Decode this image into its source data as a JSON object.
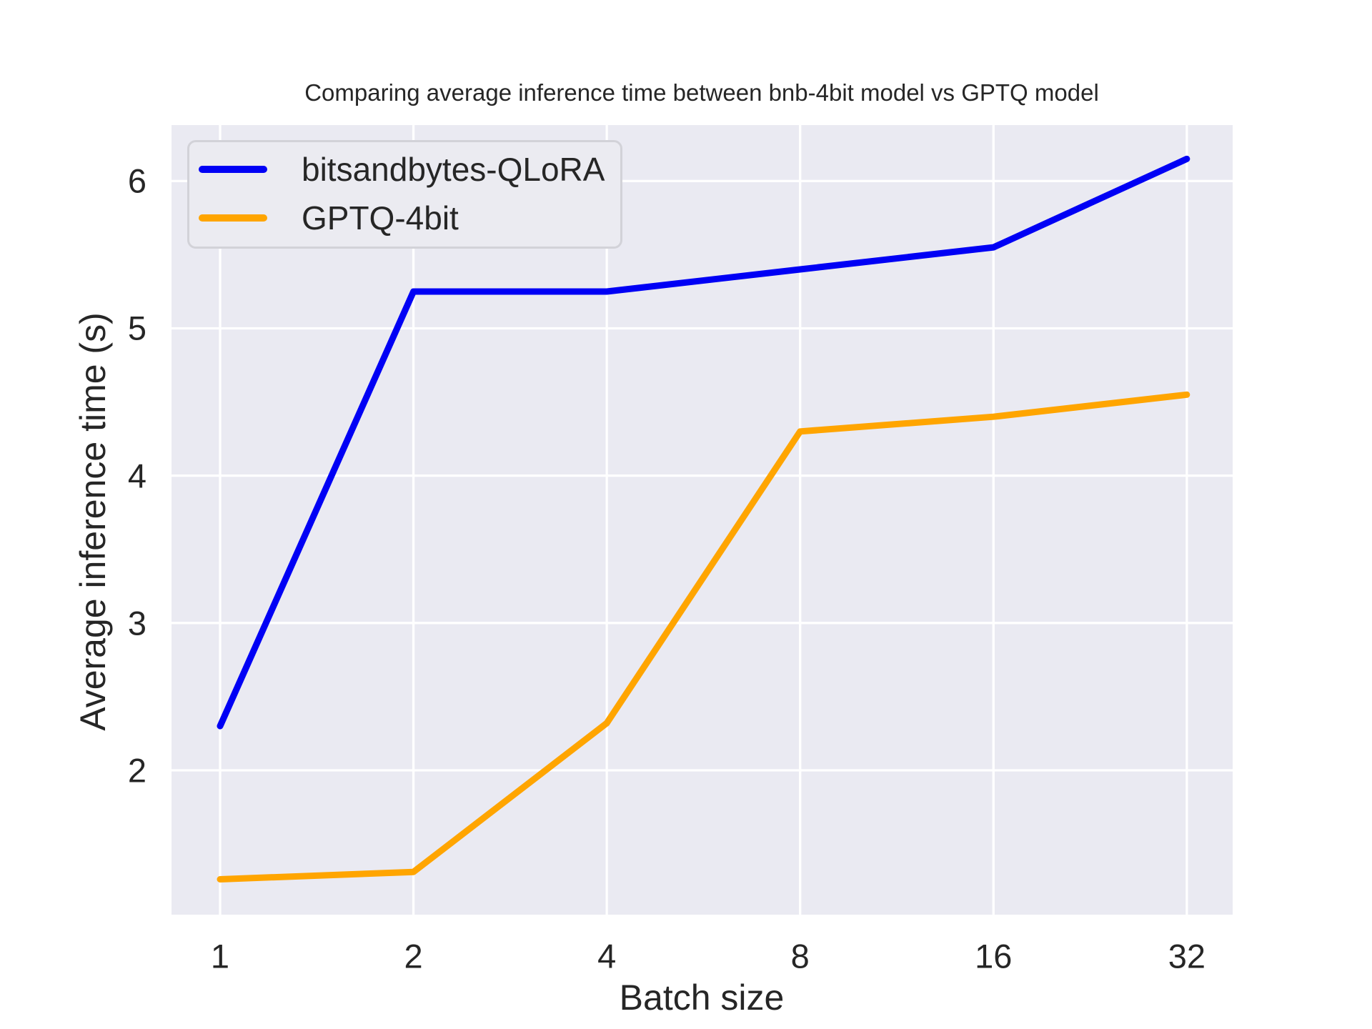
{
  "chart_data": {
    "type": "line",
    "title": "Comparing average inference time between bnb-4bit model vs GPTQ model",
    "xlabel": "Batch size",
    "ylabel": "Average inference time (s)",
    "categories": [
      "1",
      "2",
      "4",
      "8",
      "16",
      "32"
    ],
    "x_scale": "log2-equal-spaced",
    "series": [
      {
        "name": "bitsandbytes-QLoRA",
        "color": "#0000f5",
        "values": [
          2.3,
          5.25,
          5.25,
          5.4,
          5.55,
          6.15
        ]
      },
      {
        "name": "GPTQ-4bit",
        "color": "#ffa500",
        "values": [
          1.26,
          1.31,
          2.32,
          4.3,
          4.4,
          4.55
        ]
      }
    ],
    "y_ticks": [
      "2",
      "3",
      "4",
      "5",
      "6"
    ],
    "y_tick_values": [
      2,
      3,
      4,
      5,
      6
    ],
    "ylim": [
      1.02,
      6.38
    ],
    "grid": true,
    "legend_position": "upper left",
    "colors": {
      "figure_background": "#ffffff",
      "axes_background": "#eaeaf2",
      "grid": "#ffffff",
      "text": "#262626",
      "legend_face": "#ebebf1",
      "legend_edge": "#d2d2d8"
    }
  }
}
